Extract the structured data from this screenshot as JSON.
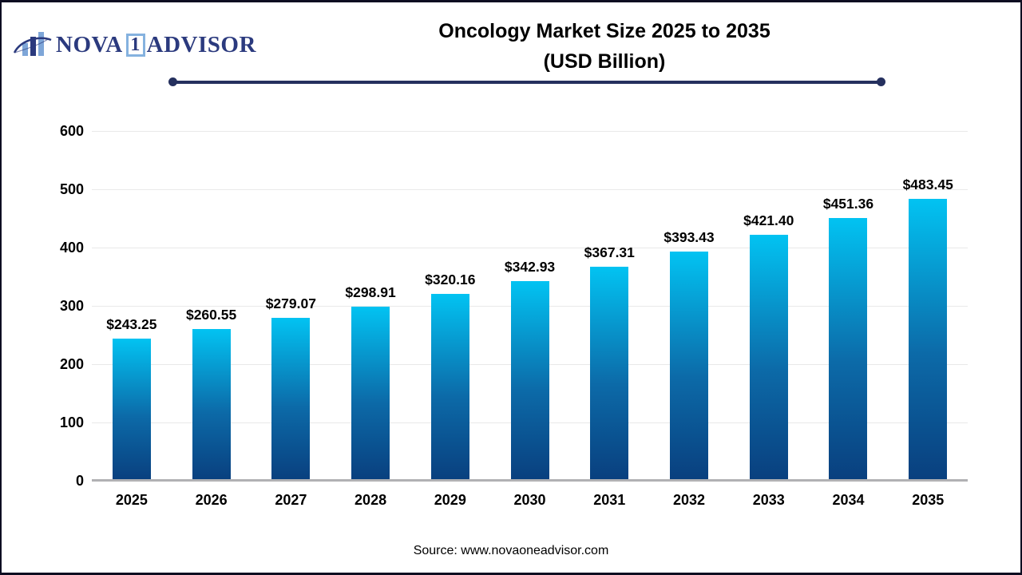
{
  "header": {
    "logo": {
      "part1": "NOVA",
      "boxed": "1",
      "part2": "ADVISOR",
      "navy": "#2b3a7e",
      "light_blue": "#85b2df"
    },
    "title_line1": "Oncology Market Size 2025 to 2035",
    "title_line2": "(USD Billion)"
  },
  "chart_data": {
    "type": "bar",
    "title": "Oncology Market Size 2025 to 2035 (USD Billion)",
    "categories": [
      "2025",
      "2026",
      "2027",
      "2028",
      "2029",
      "2030",
      "2031",
      "2032",
      "2033",
      "2034",
      "2035"
    ],
    "values": [
      243.25,
      260.55,
      279.07,
      298.91,
      320.16,
      342.93,
      367.31,
      393.43,
      421.4,
      451.36,
      483.45
    ],
    "value_labels": [
      "$243.25",
      "$260.55",
      "$279.07",
      "$298.91",
      "$320.16",
      "$342.93",
      "$367.31",
      "$393.43",
      "$421.40",
      "$451.36",
      "$483.45"
    ],
    "xlabel": "",
    "ylabel": "",
    "ylim": [
      0,
      600
    ],
    "yticks": [
      0,
      100,
      200,
      300,
      400,
      500,
      600
    ],
    "grid": true,
    "legend": false,
    "bar_gradient_top": "#02c3f2",
    "bar_gradient_bottom": "#093f7e",
    "gridline_color": "#e9e9e9",
    "baseline_color": "#b1b1b4"
  },
  "footer": {
    "source": "Source: www.novaoneadvisor.com"
  }
}
